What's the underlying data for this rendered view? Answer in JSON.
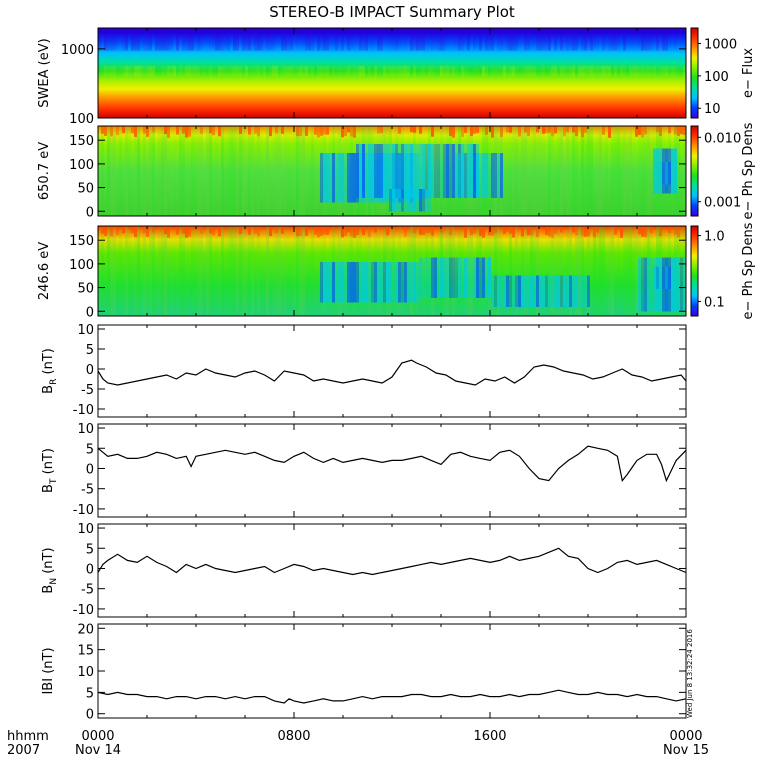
{
  "figure": {
    "title": "STEREO-B IMPACT Summary Plot",
    "timestamp": "Wed Jun  8 13:32:24 2016",
    "time_label_line1": "hhmm",
    "time_label_line2": "2007",
    "time_ticks": [
      {
        "hours": 0,
        "label": "0000",
        "date": "Nov 14"
      },
      {
        "hours": 8,
        "label": "0800",
        "date": ""
      },
      {
        "hours": 16,
        "label": "1600",
        "date": ""
      },
      {
        "hours": 24,
        "label": "0000",
        "date": "Nov 15"
      }
    ],
    "time_range_hours": [
      0,
      24
    ]
  },
  "chart_data": [
    {
      "type": "heatmap",
      "id": "swea",
      "ylabel": "SWEA (eV)",
      "yscale": "log",
      "ylim": [
        100,
        2000
      ],
      "yticks": [
        {
          "v": 100,
          "label": "100"
        },
        {
          "v": 1000,
          "label": "1000"
        }
      ],
      "colorbar": {
        "label": "e− Flux",
        "scale": "log",
        "range": [
          5,
          3000
        ],
        "ticks": [
          {
            "v": 10,
            "label": "10"
          },
          {
            "v": 100,
            "label": "100"
          },
          {
            "v": 1000,
            "label": "1000"
          }
        ]
      }
    },
    {
      "type": "heatmap",
      "id": "pad650",
      "ylabel": "650.7 eV",
      "yscale": "linear",
      "ylim": [
        -10,
        180
      ],
      "yticks": [
        {
          "v": 0,
          "label": "0"
        },
        {
          "v": 50,
          "label": "50"
        },
        {
          "v": 100,
          "label": "100"
        },
        {
          "v": 150,
          "label": "150"
        }
      ],
      "colorbar": {
        "label": "e− Ph Sp Dens",
        "scale": "log",
        "range": [
          0.0006,
          0.015
        ],
        "ticks": [
          {
            "v": 0.001,
            "label": "0.001"
          },
          {
            "v": 0.01,
            "label": "0.010"
          }
        ]
      }
    },
    {
      "type": "heatmap",
      "id": "pad246",
      "ylabel": "246.6 eV",
      "yscale": "linear",
      "ylim": [
        -10,
        180
      ],
      "yticks": [
        {
          "v": 0,
          "label": "0"
        },
        {
          "v": 50,
          "label": "50"
        },
        {
          "v": 100,
          "label": "100"
        },
        {
          "v": 150,
          "label": "150"
        }
      ],
      "colorbar": {
        "label": "e− Ph Sp Dens",
        "scale": "log",
        "range": [
          0.06,
          1.4
        ],
        "ticks": [
          {
            "v": 0.1,
            "label": "0.1"
          },
          {
            "v": 1,
            "label": "1.0"
          }
        ]
      }
    },
    {
      "type": "line",
      "id": "br",
      "ylabel_main": "B",
      "ylabel_sub": "R",
      "ylabel_unit": "(nT)",
      "ylim": [
        -12,
        11
      ],
      "yticks": [
        -10,
        -5,
        0,
        5,
        10
      ],
      "x": [
        0,
        0.2,
        0.4,
        0.8,
        1.2,
        1.6,
        2.0,
        2.4,
        2.8,
        3.2,
        3.6,
        4.0,
        4.4,
        4.8,
        5.2,
        5.6,
        6.0,
        6.4,
        6.8,
        7.2,
        7.6,
        8.0,
        8.4,
        8.8,
        9.2,
        9.6,
        10.0,
        10.4,
        10.8,
        11.2,
        11.6,
        12.0,
        12.4,
        12.8,
        13.0,
        13.4,
        13.8,
        14.2,
        14.6,
        15.0,
        15.4,
        15.8,
        16.2,
        16.6,
        17.0,
        17.4,
        17.8,
        18.2,
        18.6,
        19.0,
        19.4,
        19.8,
        20.2,
        20.6,
        21.0,
        21.4,
        21.8,
        22.2,
        22.6,
        23.0,
        23.4,
        23.8,
        24.0
      ],
      "y": [
        -0.5,
        -2.5,
        -3.5,
        -4,
        -3.5,
        -3,
        -2.5,
        -2,
        -1.5,
        -2.5,
        -1,
        -1.5,
        0,
        -1,
        -1.5,
        -2,
        -1,
        -0.5,
        -1.5,
        -3,
        -0.5,
        -1,
        -1.5,
        -3,
        -2.5,
        -3,
        -3.5,
        -3,
        -2.5,
        -3,
        -3.5,
        -2,
        1.5,
        2.2,
        1.5,
        0.5,
        -1,
        -1.5,
        -3,
        -3.5,
        -4,
        -2.5,
        -3,
        -2,
        -3.5,
        -2,
        0.5,
        1,
        0.5,
        -0.5,
        -1,
        -1.5,
        -2.5,
        -2,
        -1,
        0,
        -1.5,
        -2,
        -3,
        -2.5,
        -2,
        -1.5,
        -3
      ]
    },
    {
      "type": "line",
      "id": "bt",
      "ylabel_main": "B",
      "ylabel_sub": "T",
      "ylabel_unit": "(nT)",
      "ylim": [
        -12,
        11
      ],
      "yticks": [
        -10,
        -5,
        0,
        5,
        10
      ],
      "x": [
        0,
        0.2,
        0.4,
        0.8,
        1.2,
        1.6,
        2.0,
        2.4,
        2.8,
        3.2,
        3.6,
        3.8,
        4.0,
        4.4,
        4.8,
        5.2,
        5.6,
        6.0,
        6.4,
        6.8,
        7.2,
        7.6,
        8.0,
        8.4,
        8.8,
        9.2,
        9.6,
        10.0,
        10.4,
        10.8,
        11.2,
        11.6,
        12.0,
        12.4,
        12.8,
        13.2,
        13.6,
        14.0,
        14.4,
        14.8,
        15.2,
        15.6,
        16.0,
        16.4,
        16.8,
        17.2,
        17.6,
        18.0,
        18.4,
        18.8,
        19.2,
        19.6,
        20.0,
        20.4,
        20.8,
        21.2,
        21.4,
        21.6,
        22.0,
        22.4,
        22.8,
        23.0,
        23.2,
        23.6,
        24.0
      ],
      "y": [
        5,
        4,
        3,
        3.5,
        2.5,
        2.5,
        3,
        4,
        3.5,
        2.5,
        3,
        0.5,
        3,
        3.5,
        4,
        4.5,
        4,
        3.5,
        4,
        3,
        2,
        1.5,
        3,
        4,
        2.5,
        1.5,
        2.5,
        1.5,
        2,
        2.5,
        2,
        1.5,
        2,
        2,
        2.5,
        3,
        2,
        1,
        3.5,
        4,
        3,
        2.5,
        2,
        4,
        4.5,
        3,
        0,
        -2.5,
        -3,
        0,
        2,
        3.5,
        5.5,
        5,
        4.5,
        3,
        -3,
        -1.5,
        2,
        3.5,
        3.5,
        1,
        -3,
        2,
        4.5
      ]
    },
    {
      "type": "line",
      "id": "bn",
      "ylabel_main": "B",
      "ylabel_sub": "N",
      "ylabel_unit": "(nT)",
      "ylim": [
        -12,
        11
      ],
      "yticks": [
        -10,
        -5,
        0,
        5,
        10
      ],
      "x": [
        0,
        0.2,
        0.4,
        0.8,
        1.2,
        1.6,
        2.0,
        2.4,
        2.8,
        3.2,
        3.6,
        4.0,
        4.4,
        4.8,
        5.2,
        5.6,
        6.0,
        6.4,
        6.8,
        7.2,
        7.6,
        8.0,
        8.4,
        8.8,
        9.2,
        9.6,
        10.0,
        10.4,
        10.8,
        11.2,
        11.6,
        12.0,
        12.4,
        12.8,
        13.2,
        13.6,
        14.0,
        14.4,
        14.8,
        15.2,
        15.6,
        16.0,
        16.4,
        16.8,
        17.2,
        17.6,
        18.0,
        18.4,
        18.8,
        19.2,
        19.6,
        20.0,
        20.4,
        20.8,
        21.2,
        21.6,
        22.0,
        22.4,
        22.8,
        23.2,
        23.6,
        24.0
      ],
      "y": [
        -1,
        1,
        2,
        3.5,
        2,
        1.5,
        3,
        1.5,
        0.5,
        -1,
        1,
        0,
        1,
        0,
        -0.5,
        -1,
        -0.5,
        0,
        0.5,
        -1,
        0,
        1,
        0.5,
        -0.5,
        0,
        -0.5,
        -1,
        -1.5,
        -1,
        -1.5,
        -1,
        -0.5,
        0,
        0.5,
        1,
        1.5,
        1,
        1.5,
        2,
        2.5,
        2,
        1.5,
        2,
        3,
        2,
        2.5,
        3,
        4,
        5,
        3,
        2.5,
        0,
        -1,
        0,
        1.5,
        2,
        1,
        1.5,
        2,
        1,
        0,
        -1
      ]
    },
    {
      "type": "line",
      "id": "bmag",
      "ylabel_main": "IBI",
      "ylabel_sub": "",
      "ylabel_unit": "(nT)",
      "ylim": [
        -1,
        21
      ],
      "yticks": [
        0,
        5,
        10,
        15,
        20
      ],
      "x": [
        0,
        0.4,
        0.8,
        1.2,
        1.6,
        2.0,
        2.4,
        2.8,
        3.2,
        3.6,
        4.0,
        4.4,
        4.8,
        5.2,
        5.6,
        6.0,
        6.4,
        6.8,
        7.2,
        7.6,
        7.8,
        8.0,
        8.4,
        8.8,
        9.2,
        9.6,
        10.0,
        10.4,
        10.8,
        11.2,
        11.6,
        12.0,
        12.4,
        12.8,
        13.2,
        13.6,
        14.0,
        14.4,
        14.8,
        15.2,
        15.6,
        16.0,
        16.4,
        16.8,
        17.2,
        17.6,
        18.0,
        18.4,
        18.8,
        19.2,
        19.6,
        20.0,
        20.4,
        20.8,
        21.2,
        21.6,
        22.0,
        22.4,
        22.8,
        23.2,
        23.6,
        24.0
      ],
      "y": [
        5,
        4.5,
        5,
        4.5,
        4.5,
        4,
        4,
        3.5,
        4,
        4,
        3.5,
        4,
        4,
        3.5,
        4,
        3.5,
        4,
        4,
        3,
        2.5,
        3.5,
        3,
        2.5,
        3,
        3.5,
        3,
        3,
        3.5,
        4,
        3.5,
        4,
        4,
        4,
        4.5,
        4.5,
        4,
        4,
        4.5,
        4,
        4,
        4.5,
        4,
        4,
        4.5,
        4,
        4.5,
        4.5,
        5,
        5.5,
        5,
        4.5,
        4.5,
        5,
        4.5,
        4.5,
        4,
        4.5,
        4,
        4,
        3.5,
        3,
        3.5
      ]
    }
  ]
}
